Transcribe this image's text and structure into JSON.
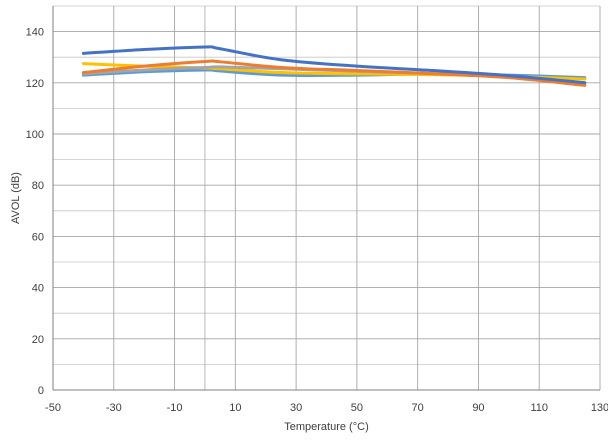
{
  "chart_data": {
    "type": "line",
    "title": "",
    "xlabel": "Temperature (°C)",
    "ylabel": "AVOL (dB)",
    "xlim": [
      -50,
      130
    ],
    "ylim": [
      0,
      150
    ],
    "x_ticks": [
      -50,
      -30,
      -10,
      10,
      30,
      50,
      70,
      90,
      110,
      130
    ],
    "x_tick_labels": [
      "-50",
      "-30",
      "-10",
      "10",
      "30",
      "50",
      "70",
      "90",
      "110",
      "130"
    ],
    "y_ticks": [
      0,
      20,
      40,
      60,
      80,
      100,
      120,
      140
    ],
    "y_tick_labels": [
      "0",
      "20",
      "40",
      "60",
      "80",
      "100",
      "120",
      "140"
    ],
    "x_minor_gridlines": [
      0
    ],
    "y_minor_gridlines": [
      10,
      30,
      50,
      70,
      90,
      110,
      130,
      150
    ],
    "grid": true,
    "legend": "none",
    "series": [
      {
        "color": "#4472C4",
        "x": [
          -40,
          -20,
          0,
          5,
          25,
          50,
          75,
          100,
          125
        ],
        "values": [
          131.5,
          133.0,
          134.0,
          133.3,
          129.0,
          126.5,
          124.8,
          122.8,
          120.0
        ]
      },
      {
        "color": "#ED7D31",
        "x": [
          -40,
          -20,
          0,
          5,
          25,
          50,
          75,
          100,
          125
        ],
        "values": [
          124.0,
          126.5,
          128.3,
          128.2,
          126.0,
          124.8,
          123.6,
          122.0,
          119.0
        ]
      },
      {
        "color": "#A5A5A5",
        "x": [
          -40,
          -20,
          0,
          5,
          25,
          50,
          75,
          100,
          125
        ],
        "values": [
          123.5,
          125.0,
          126.0,
          126.2,
          125.5,
          124.5,
          123.6,
          122.3,
          120.0
        ]
      },
      {
        "color": "#FFC000",
        "x": [
          -40,
          -20,
          0,
          5,
          25,
          50,
          75,
          100,
          125
        ],
        "values": [
          127.5,
          126.5,
          125.8,
          125.5,
          124.0,
          123.5,
          123.2,
          122.5,
          121.5
        ]
      },
      {
        "color": "#5B9BD5",
        "x": [
          -40,
          -20,
          0,
          5,
          25,
          50,
          75,
          100,
          125
        ],
        "values": [
          123.0,
          124.3,
          125.0,
          124.6,
          123.0,
          123.0,
          123.5,
          123.0,
          122.0
        ]
      }
    ]
  }
}
